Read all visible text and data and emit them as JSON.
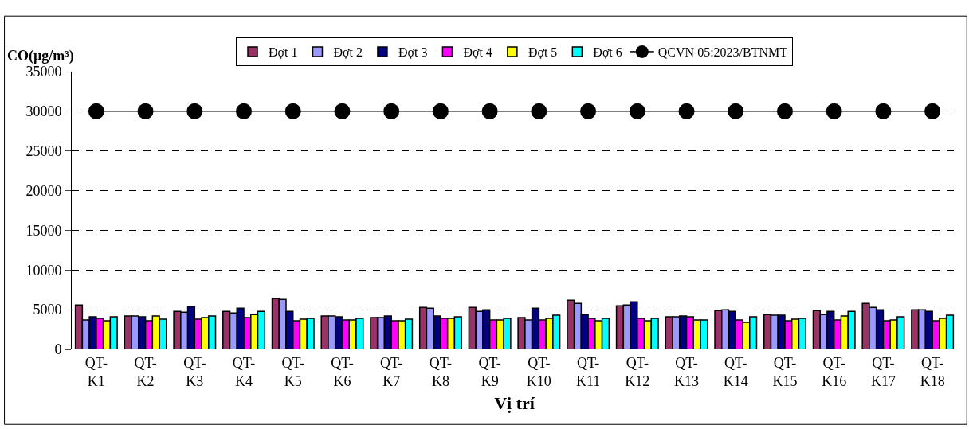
{
  "chart_data": {
    "type": "bar",
    "ylabel": "CO(µg/m³)",
    "xlabel": "Vị trí",
    "categories": [
      "QT-K1",
      "QT-K2",
      "QT-K3",
      "QT-K4",
      "QT-K5",
      "QT-K6",
      "QT-K7",
      "QT-K8",
      "QT-K9",
      "QT-K10",
      "QT-K11",
      "QT-K12",
      "QT-K13",
      "QT-K14",
      "QT-K15",
      "QT-K16",
      "QT-K17",
      "QT-K18"
    ],
    "series": [
      {
        "name": "Đợt 1",
        "color": "#993366",
        "values": [
          5600,
          4200,
          4800,
          4800,
          6400,
          4200,
          4000,
          5300,
          5300,
          4000,
          6200,
          5500,
          4100,
          4900,
          4400,
          4900,
          5800,
          5000
        ]
      },
      {
        "name": "Đợt 2",
        "color": "#9999ff",
        "values": [
          3700,
          4200,
          4700,
          4600,
          6300,
          4200,
          4000,
          5200,
          4800,
          3700,
          5800,
          5600,
          4100,
          5000,
          4300,
          4400,
          5300,
          5000
        ]
      },
      {
        "name": "Đợt 3",
        "color": "#000080",
        "values": [
          4100,
          4100,
          5400,
          5200,
          4800,
          4100,
          4200,
          4200,
          5000,
          5200,
          4400,
          6000,
          4200,
          4800,
          4300,
          4800,
          5000,
          4800
        ]
      },
      {
        "name": "Đợt 4",
        "color": "#ff00ff",
        "values": [
          3900,
          3600,
          3800,
          4000,
          3600,
          3700,
          3600,
          3900,
          3700,
          3700,
          3900,
          3900,
          4100,
          3700,
          3600,
          3700,
          3600,
          3600
        ]
      },
      {
        "name": "Đợt 5",
        "color": "#ffff00",
        "values": [
          3600,
          4200,
          4000,
          4400,
          3800,
          3700,
          3600,
          3900,
          3700,
          3900,
          3600,
          3600,
          3700,
          3400,
          3800,
          4200,
          3700,
          3900
        ]
      },
      {
        "name": "Đợt 6",
        "color": "#00ffff",
        "values": [
          4100,
          3800,
          4200,
          4800,
          3900,
          3900,
          3800,
          4100,
          3900,
          4300,
          3900,
          3900,
          3700,
          4100,
          3900,
          4800,
          4100,
          4300
        ]
      },
      {
        "name": "QCVN 05:2023/BTNMT",
        "type": "line",
        "color": "#000000",
        "marker": "circle",
        "values": [
          30000,
          30000,
          30000,
          30000,
          30000,
          30000,
          30000,
          30000,
          30000,
          30000,
          30000,
          30000,
          30000,
          30000,
          30000,
          30000,
          30000,
          30000
        ]
      }
    ],
    "ylim": [
      0,
      35000
    ],
    "yticks": [
      0,
      5000,
      10000,
      15000,
      20000,
      25000,
      30000,
      35000
    ],
    "grid": "y",
    "legend": "top"
  }
}
